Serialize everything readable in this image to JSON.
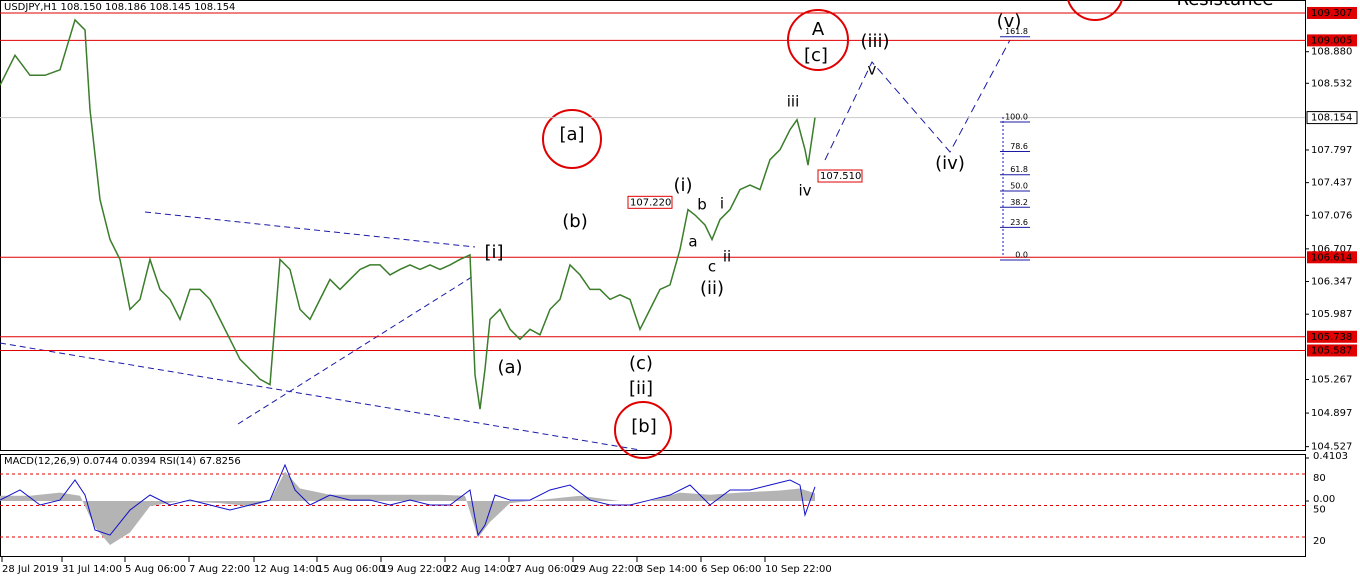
{
  "chart_data": [
    {
      "type": "line",
      "title": "USDJPY,H1 108.150 108.186 108.145 108.154",
      "ylim": [
        104.49,
        109.45
      ],
      "yticks": [
        {
          "value": 108.88,
          "label": "108.880"
        },
        108.532,
        107.797,
        107.437,
        107.076,
        106.707,
        106.347,
        105.987,
        105.267,
        104.897,
        104.527
      ],
      "xlim": [
        0,
        1305
      ],
      "xticks": [
        {
          "value": 2,
          "label": "28 Jul 2019"
        },
        {
          "value": 62,
          "label": "31 Jul 14:00"
        },
        {
          "value": 125,
          "label": "5 Aug 06:00"
        },
        {
          "value": 189,
          "label": "7 Aug 22:00"
        },
        {
          "value": 254,
          "label": "12 Aug 14:00"
        },
        {
          "value": 317,
          "label": "15 Aug 06:00"
        },
        {
          "value": 381,
          "label": "19 Aug 22:00"
        },
        {
          "value": 445,
          "label": "22 Aug 14:00"
        },
        {
          "value": 509,
          "label": "27 Aug 06:00"
        },
        {
          "value": 573,
          "label": "29 Aug 22:00"
        },
        {
          "value": 637,
          "label": "3 Sep 14:00"
        },
        {
          "value": 701,
          "label": "6 Sep 06:00"
        },
        {
          "value": 765,
          "label": "10 Sep 22:00"
        }
      ],
      "series": [
        {
          "color": "#3a7d2a",
          "x": [
            0,
            15,
            30,
            45,
            60,
            75,
            85,
            90,
            100,
            110,
            120,
            130,
            140,
            150,
            160,
            170,
            180,
            190,
            200,
            210,
            220,
            230,
            240,
            250,
            260,
            270,
            280,
            290,
            300,
            310,
            320,
            330,
            340,
            350,
            360,
            370,
            380,
            390,
            400,
            410,
            420,
            430,
            440,
            450,
            460,
            470,
            475,
            480,
            485,
            490,
            500,
            510,
            520,
            530,
            540,
            550,
            560,
            570,
            580,
            590,
            600,
            610,
            620,
            630,
            640,
            650,
            660,
            670,
            680,
            688,
            695,
            705,
            712,
            720,
            730,
            740,
            750,
            760,
            770,
            780,
            790,
            797,
            805,
            808,
            815
          ],
          "values": [
            108.51,
            108.84,
            108.62,
            108.62,
            108.68,
            109.23,
            109.12,
            108.24,
            107.25,
            106.81,
            106.59,
            106.04,
            106.15,
            106.59,
            106.26,
            106.15,
            105.93,
            106.26,
            106.26,
            106.15,
            105.93,
            105.71,
            105.49,
            105.38,
            105.27,
            105.21,
            106.59,
            106.48,
            106.04,
            105.93,
            106.15,
            106.37,
            106.26,
            106.37,
            106.48,
            106.53,
            106.53,
            106.42,
            106.48,
            106.53,
            106.48,
            106.53,
            106.48,
            106.53,
            106.59,
            106.64,
            105.32,
            104.94,
            105.38,
            105.93,
            106.04,
            105.82,
            105.71,
            105.82,
            105.76,
            106.04,
            106.15,
            106.53,
            106.42,
            106.26,
            106.26,
            106.15,
            106.2,
            106.15,
            105.82,
            106.04,
            106.26,
            106.31,
            106.7,
            107.14,
            107.08,
            106.97,
            106.81,
            107.03,
            107.14,
            107.36,
            107.41,
            107.36,
            107.69,
            107.8,
            108.02,
            108.13,
            107.8,
            107.63,
            108.154
          ]
        }
      ],
      "price_lines": [
        109.307,
        109.005,
        106.614,
        105.738,
        105.587
      ],
      "price_line_color": "#e00000",
      "current_price": 108.154,
      "price_marks": [
        {
          "value": 107.51,
          "label": "107.510"
        },
        {
          "value": 107.22,
          "label": "107.220"
        }
      ],
      "fib_levels": [
        161.8,
        {
          "value": 100,
          "label": "100.0"
        },
        78.6,
        61.8,
        {
          "value": 50,
          "label": "50.0"
        },
        38.2,
        23.6,
        {
          "value": 0,
          "label": "0.0"
        }
      ],
      "annotations": [
        {
          "text": "A",
          "color": "#ff8c00"
        },
        {
          "text": "[c]",
          "color": "#2e8b22"
        },
        {
          "text": "(iii)",
          "color": "#1a1aa6"
        },
        {
          "text": "v",
          "color": "#e020e0"
        },
        {
          "text": "(v)",
          "color": "#1a1aa6"
        },
        {
          "text": "(iv)",
          "color": "#1a1aa6"
        },
        {
          "text": "iii",
          "color": "#e020e0"
        },
        {
          "text": "iv",
          "color": "#e020e0"
        },
        {
          "text": "(i)",
          "color": "#1a1aa6"
        },
        {
          "text": "b",
          "color": "#e020e0"
        },
        {
          "text": "i",
          "color": "#e020e0"
        },
        {
          "text": "a",
          "color": "#e020e0"
        },
        {
          "text": "c",
          "color": "#e020e0"
        },
        {
          "text": "ii",
          "color": "#e020e0"
        },
        {
          "text": "(ii)",
          "color": "#1a1aa6"
        },
        {
          "text": "(b)",
          "color": "#1a1aa6"
        },
        {
          "text": "[a]",
          "color": "#2e8b22"
        },
        {
          "text": "[i]",
          "color": "#2e8b22"
        },
        {
          "text": "(a)",
          "color": "#1a1aa6"
        },
        {
          "text": "(c)",
          "color": "#1a1aa6"
        },
        {
          "text": "[ii]",
          "color": "#2e8b22"
        },
        {
          "text": "[b]",
          "color": "#2e8b22"
        },
        {
          "text": "Resistance",
          "color": "#e00000"
        }
      ]
    },
    {
      "type": "line",
      "subtitle": "MACD(12,26,9) 0.0744 0.0394 RSI(14) 67.8256",
      "ylim": [
        2.9,
        98.1
      ],
      "yticks": [
        80,
        50,
        20
      ],
      "y2lim": [
        -0.515,
        0.439
      ],
      "y2ticks": [
        0.4103,
        {
          "value": 0,
          "label": "0.00"
        }
      ],
      "series": [
        {
          "color": "#b4b4b4",
          "axis": "y2",
          "style": "area",
          "x": [
            0,
            30,
            60,
            80,
            95,
            110,
            130,
            150,
            180,
            220,
            250,
            270,
            285,
            300,
            330,
            360,
            400,
            440,
            465,
            478,
            490,
            510,
            550,
            580,
            620,
            650,
            680,
            710,
            740,
            780,
            800,
            815
          ],
          "values": [
            0.05,
            0.05,
            0.08,
            0.05,
            -0.25,
            -0.42,
            -0.3,
            -0.05,
            0,
            -0.02,
            -0.05,
            0,
            0.28,
            0.12,
            0.06,
            0.06,
            0.06,
            0.06,
            0.05,
            -0.35,
            -0.2,
            -0.02,
            0.02,
            0.05,
            0,
            0,
            0.08,
            0.06,
            0.08,
            0.1,
            0.12,
            0.0744
          ]
        },
        {
          "color": "#1010c8",
          "style": "line",
          "x": [
            0,
            20,
            40,
            60,
            75,
            85,
            95,
            110,
            130,
            150,
            170,
            190,
            210,
            230,
            250,
            270,
            285,
            295,
            310,
            330,
            350,
            370,
            390,
            410,
            430,
            450,
            470,
            478,
            485,
            495,
            510,
            530,
            550,
            570,
            590,
            610,
            630,
            650,
            670,
            690,
            710,
            730,
            750,
            770,
            790,
            800,
            805,
            815
          ],
          "values": [
            55.2,
            64.8,
            50.5,
            55.2,
            74.3,
            60.0,
            26.7,
            21.9,
            45.7,
            60.0,
            50.5,
            55.2,
            50.5,
            45.7,
            50.5,
            55.2,
            88.6,
            64.8,
            50.5,
            60.0,
            55.2,
            55.2,
            50.5,
            55.2,
            50.5,
            50.5,
            64.8,
            21.9,
            31.4,
            60.0,
            55.2,
            55.2,
            64.8,
            69.5,
            55.2,
            50.5,
            50.5,
            55.2,
            60.0,
            69.5,
            50.5,
            64.8,
            64.8,
            69.5,
            74.3,
            69.5,
            41.0,
            67.8256
          ]
        }
      ]
    }
  ]
}
